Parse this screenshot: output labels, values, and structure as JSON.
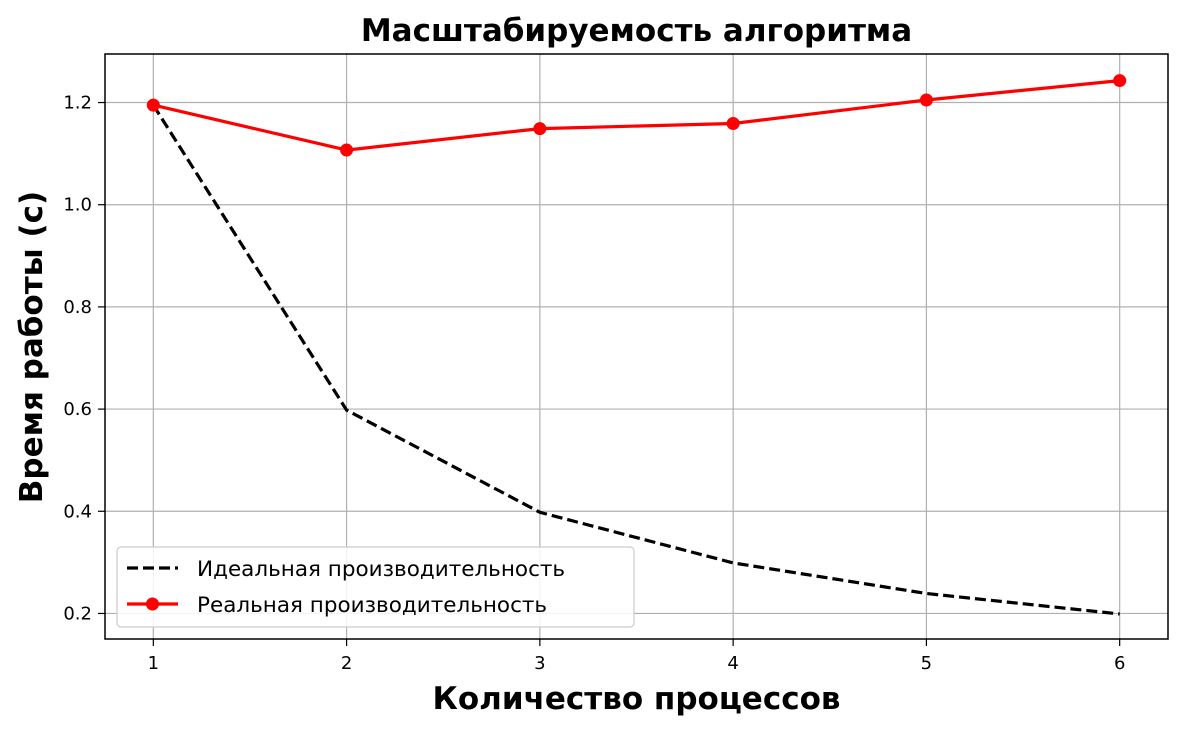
{
  "chart_data": {
    "type": "line",
    "title": "Масштабируемость алгоритма",
    "xlabel": "Количество процессов",
    "ylabel": "Время работы (с)",
    "x": [
      1,
      2,
      3,
      4,
      5,
      6
    ],
    "xlim": [
      0.75,
      6.25
    ],
    "ylim": [
      0.15,
      1.295
    ],
    "xticks": [
      "1",
      "2",
      "3",
      "4",
      "5",
      "6"
    ],
    "yticks": [
      "0.2",
      "0.4",
      "0.6",
      "0.8",
      "1.0",
      "1.2"
    ],
    "grid": true,
    "legend_position": "lower-left",
    "series": [
      {
        "name": "Идеальная производительность",
        "values": [
          1.195,
          0.598,
          0.398,
          0.299,
          0.239,
          0.199
        ],
        "color": "#000000",
        "style": "dashed",
        "marker": "none"
      },
      {
        "name": "Реальная производительность",
        "values": [
          1.195,
          1.107,
          1.149,
          1.159,
          1.205,
          1.243
        ],
        "color": "#ff0000",
        "style": "solid",
        "marker": "circle"
      }
    ]
  }
}
